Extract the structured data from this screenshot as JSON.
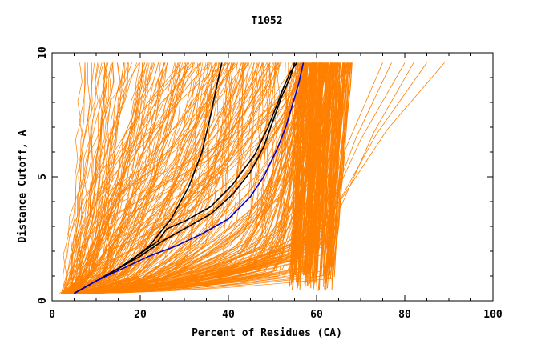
{
  "chart_data": {
    "type": "line",
    "title": "T1052",
    "xlabel": "Percent of Residues (CA)",
    "ylabel": "Distance Cutoff, A",
    "xlim": [
      0,
      100
    ],
    "ylim": [
      0,
      10
    ],
    "x_ticks": [
      "0",
      "20",
      "40",
      "60",
      "80",
      "100"
    ],
    "y_ticks": [
      "0",
      "5",
      "10"
    ],
    "grid": false,
    "legend": "none",
    "colors": {
      "background_curves": "#ff8000",
      "highlight_black": "#000000",
      "highlight_blue": "#0000c8"
    },
    "series": [
      {
        "color": "#000000",
        "x": [
          5,
          8,
          12,
          17,
          22,
          27,
          31,
          34,
          36,
          37.5,
          38.5
        ],
        "y": [
          0.3,
          0.6,
          1.0,
          1.5,
          2.2,
          3.3,
          4.6,
          6.0,
          7.5,
          8.8,
          9.6
        ]
      },
      {
        "color": "#000000",
        "x": [
          5,
          10,
          15,
          20,
          25,
          30,
          36,
          41,
          45,
          48,
          50,
          52,
          54,
          55
        ],
        "y": [
          0.3,
          0.8,
          1.3,
          1.8,
          2.4,
          2.9,
          3.5,
          4.3,
          5.2,
          6.2,
          7.2,
          8.2,
          9.0,
          9.6
        ]
      },
      {
        "color": "#000000",
        "x": [
          5,
          10,
          15,
          20,
          24,
          26,
          30,
          36,
          41,
          46,
          49,
          51,
          52.5,
          54,
          55.5
        ],
        "y": [
          0.3,
          0.8,
          1.3,
          1.9,
          2.4,
          2.9,
          3.2,
          3.8,
          4.7,
          5.9,
          7.0,
          7.9,
          8.6,
          9.2,
          9.6
        ]
      },
      {
        "color": "#0000c8",
        "x": [
          5,
          10,
          16,
          22,
          28,
          34,
          40,
          45,
          48,
          51,
          53,
          54.5,
          56,
          57
        ],
        "y": [
          0.3,
          0.8,
          1.3,
          1.8,
          2.2,
          2.7,
          3.3,
          4.2,
          5.0,
          6.1,
          7.0,
          7.9,
          8.8,
          9.6
        ]
      }
    ]
  }
}
